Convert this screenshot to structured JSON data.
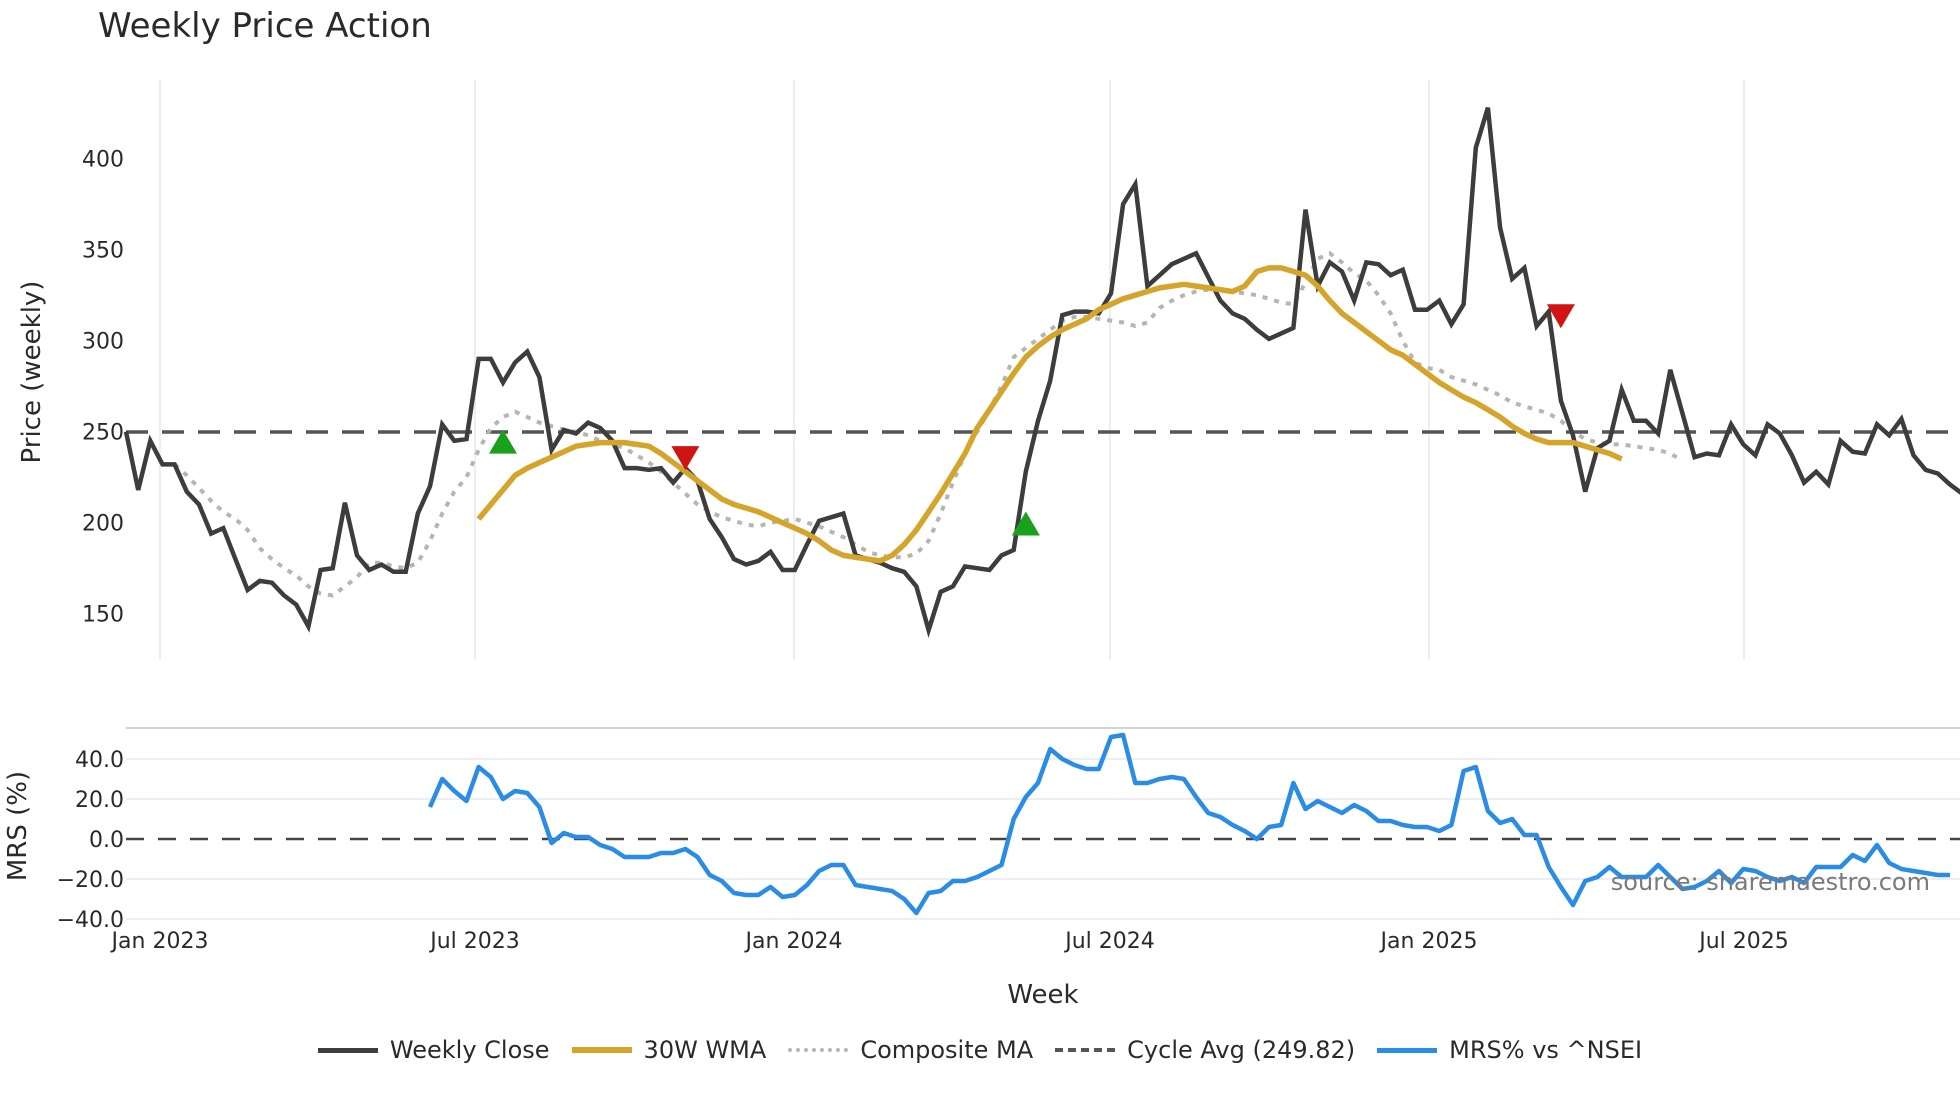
{
  "title": "Weekly Price Action",
  "x_axis": {
    "title": "Week",
    "ticks": [
      "Jan 2023",
      "Jul 2023",
      "Jan 2024",
      "Jul 2024",
      "Jan 2025",
      "Jul 2025"
    ]
  },
  "price_panel": {
    "ylabel": "Price (weekly)",
    "ticks": [
      "150",
      "200",
      "250",
      "300",
      "350",
      "400"
    ]
  },
  "mrs_panel": {
    "ylabel": "MRS (%)",
    "ticks": [
      "−40.0",
      "−20.0",
      "0.0",
      "20.0",
      "40.0"
    ]
  },
  "watermark": "source: sharemaestro.com",
  "legend": [
    {
      "label": "Weekly Close",
      "color": "#3d3d3d",
      "style": "solid"
    },
    {
      "label": "30W WMA",
      "color": "#d4a52a",
      "style": "solid"
    },
    {
      "label": "Composite MA",
      "color": "#b5b5b5",
      "style": "dotted"
    },
    {
      "label": "Cycle Avg (249.82)",
      "color": "#555555",
      "style": "dashed"
    },
    {
      "label": "MRS% vs ^NSEI",
      "color": "#2b8ce6",
      "style": "solid"
    }
  ],
  "chart_data": [
    {
      "type": "line",
      "title": "Weekly Price Action",
      "xlabel": "Week",
      "ylabel": "Price (weekly)",
      "ylim": [
        125,
        442
      ],
      "grid": true,
      "legend_position": "bottom",
      "x_start": "2022-12-19",
      "x_step": "1 week",
      "tick_labels": [
        "Jan 2023",
        "Jul 2023",
        "Jan 2024",
        "Jul 2024",
        "Jan 2025",
        "Jul 2025"
      ],
      "series": [
        {
          "name": "Weekly Close",
          "color": "#3d3d3d",
          "values": [
            250,
            218,
            245,
            232,
            232,
            217,
            210,
            194,
            197,
            180,
            163,
            168,
            167,
            160,
            155,
            143,
            174,
            175,
            211,
            182,
            174,
            177,
            173,
            173,
            205,
            220,
            254,
            245,
            246,
            290,
            290,
            277,
            288,
            294,
            280,
            240,
            251,
            249,
            255,
            252,
            245,
            230,
            230,
            229,
            230,
            222,
            230,
            223,
            202,
            192,
            180,
            177,
            179,
            184,
            174,
            174,
            188,
            201,
            203,
            205,
            182,
            180,
            178,
            175,
            173,
            165,
            141,
            162,
            165,
            176,
            175,
            174,
            182,
            185,
            228,
            256,
            278,
            314,
            316,
            316,
            315,
            326,
            375,
            386,
            330,
            336,
            342,
            345,
            348,
            335,
            322,
            315,
            312,
            306,
            301,
            304,
            307,
            372,
            330,
            343,
            338,
            322,
            343,
            342,
            336,
            339,
            317,
            317,
            322,
            309,
            320,
            406,
            428,
            362,
            334,
            340,
            308,
            316,
            267,
            248,
            217,
            241,
            245,
            273,
            256,
            256,
            249,
            284,
            260,
            236,
            238,
            237,
            254,
            243,
            237,
            254,
            249,
            237,
            222,
            228,
            221,
            245,
            239,
            238,
            254,
            248,
            257,
            237,
            229,
            227,
            221,
            216,
            211
          ],
          "color_hex": "#3d3d3d"
        },
        {
          "name": "30W WMA",
          "color": "#d4a52a",
          "start_index": 29,
          "values": [
            202,
            210,
            218,
            226,
            230,
            233,
            236,
            239,
            242,
            243,
            244,
            244,
            244,
            243,
            242,
            238,
            233,
            228,
            223,
            218,
            213,
            210,
            208,
            206,
            203,
            200,
            197,
            194,
            190,
            185,
            182,
            181,
            180,
            179,
            182,
            188,
            196,
            206,
            216,
            227,
            238,
            252,
            262,
            272,
            282,
            291,
            297,
            302,
            306,
            309,
            312,
            317,
            320,
            323,
            325,
            327,
            329,
            330,
            331,
            330,
            329,
            328,
            327,
            330,
            338,
            340,
            340,
            338,
            336,
            330,
            322,
            315,
            310,
            305,
            300,
            295,
            292,
            287,
            282,
            277,
            273,
            269,
            266,
            262,
            258,
            253,
            249,
            246,
            244,
            244,
            244,
            242,
            240,
            238,
            235
          ],
          "color_hex": "#d4a52a"
        },
        {
          "name": "Composite MA",
          "color": "#b5b5b5",
          "start_index": 4,
          "values": [
            232,
            226,
            219,
            212,
            206,
            202,
            196,
            186,
            180,
            175,
            171,
            165,
            161,
            160,
            165,
            170,
            178,
            178,
            176,
            175,
            178,
            190,
            205,
            217,
            225,
            240,
            252,
            258,
            261,
            258,
            255,
            253,
            251,
            250,
            248,
            245,
            243,
            241,
            237,
            233,
            228,
            222,
            216,
            210,
            206,
            203,
            201,
            199,
            198,
            200,
            201,
            202,
            200,
            198,
            195,
            192,
            188,
            184,
            182,
            181,
            181,
            183,
            190,
            205,
            222,
            238,
            250,
            262,
            275,
            291,
            296,
            301,
            306,
            311,
            313,
            313,
            312,
            311,
            310,
            308,
            310,
            318,
            322,
            325,
            327,
            328,
            328,
            327,
            326,
            325,
            323,
            321,
            320,
            332,
            345,
            348,
            343,
            337,
            333,
            325,
            315,
            300,
            288,
            285,
            284,
            280,
            278,
            276,
            273,
            270,
            266,
            264,
            262,
            260,
            256,
            250,
            246,
            244,
            243,
            243,
            242,
            241,
            240,
            238,
            234
          ],
          "color_hex": "#b5b5b5"
        },
        {
          "name": "Cycle Avg (249.82)",
          "color": "#555555",
          "constant": 249.82,
          "color_hex": "#555555"
        }
      ],
      "annotations": [
        {
          "type": "buy-marker",
          "shape": "triangle-up",
          "color": "#1aa01a",
          "week_index": 31,
          "price": 244
        },
        {
          "type": "sell-marker",
          "shape": "triangle-down",
          "color": "#d01414",
          "week_index": 46,
          "price": 236
        },
        {
          "type": "buy-marker",
          "shape": "triangle-up",
          "color": "#1aa01a",
          "week_index": 74,
          "price": 199
        },
        {
          "type": "sell-marker",
          "shape": "triangle-down",
          "color": "#d01414",
          "week_index": 118,
          "price": 314
        }
      ]
    },
    {
      "type": "line",
      "title": "MRS% vs ^NSEI",
      "xlabel": "Week",
      "ylabel": "MRS (%)",
      "ylim": [
        -40,
        56
      ],
      "grid": true,
      "reference_line": 0,
      "series": [
        {
          "name": "MRS% vs ^NSEI",
          "color": "#2b8ce6",
          "start_index": 25,
          "values": [
            16,
            30,
            24,
            19,
            36,
            31,
            20,
            24,
            23,
            16,
            -2,
            3,
            1,
            1,
            -3,
            -5,
            -9,
            -9,
            -9,
            -7,
            -7,
            -5,
            -9,
            -18,
            -21,
            -27,
            -28,
            -28,
            -24,
            -29,
            -28,
            -23,
            -16,
            -13,
            -13,
            -23,
            -24,
            -25,
            -26,
            -30,
            -37,
            -27,
            -26,
            -21,
            -21,
            -19,
            -16,
            -13,
            10,
            21,
            28,
            45,
            40,
            37,
            35,
            35,
            51,
            52,
            28,
            28,
            30,
            31,
            30,
            21,
            13,
            11,
            7,
            4,
            0,
            6,
            7,
            28,
            15,
            19,
            16,
            13,
            17,
            14,
            9,
            9,
            7,
            6,
            6,
            4,
            7,
            34,
            36,
            14,
            8,
            10,
            2,
            2,
            -14,
            -24,
            -33,
            -21,
            -19,
            -14,
            -19,
            -19,
            -19,
            -13,
            -19,
            -25,
            -24,
            -21,
            -16,
            -22,
            -15,
            -16,
            -19,
            -21,
            -19,
            -22,
            -14,
            -14,
            -14,
            -8,
            -11,
            -3,
            -12,
            -15,
            -16,
            -17,
            -18,
            -18
          ]
        }
      ]
    }
  ]
}
